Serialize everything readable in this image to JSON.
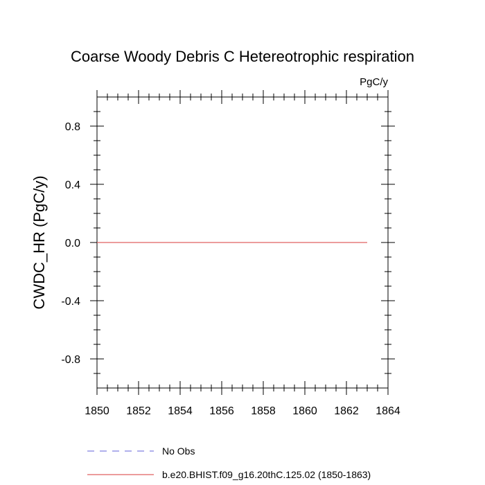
{
  "chart_data": {
    "type": "line",
    "title": "Coarse Woody Debris C Hetereotrophic respiration",
    "units_label": "PgC/y",
    "xlabel": "",
    "ylabel": "CWDC_HR  (PgC/y)",
    "xlim": [
      1850,
      1864
    ],
    "ylim": [
      -1,
      1
    ],
    "x_ticks": [
      1850,
      1852,
      1854,
      1856,
      1858,
      1860,
      1862,
      1864
    ],
    "x_tick_labels": [
      "1850",
      "1852",
      "1854",
      "1856",
      "1858",
      "1860",
      "1862",
      "1864"
    ],
    "y_ticks": [
      -0.8,
      -0.4,
      0.0,
      0.4,
      0.8
    ],
    "y_tick_labels": [
      "-0.8",
      "-0.4",
      "0.0",
      "0.4",
      "0.8"
    ],
    "grid": false,
    "legend_position": "bottom",
    "series": [
      {
        "name": "No Obs",
        "color": "#8080e0",
        "dash": "dashed",
        "x": [],
        "y": []
      },
      {
        "name": "b.e20.BHIST.f09_g16.20thC.125.02 (1850-1863)",
        "color": "#e06060",
        "dash": "solid",
        "x": [
          1850,
          1863
        ],
        "y": [
          0.0,
          0.0
        ]
      }
    ]
  }
}
